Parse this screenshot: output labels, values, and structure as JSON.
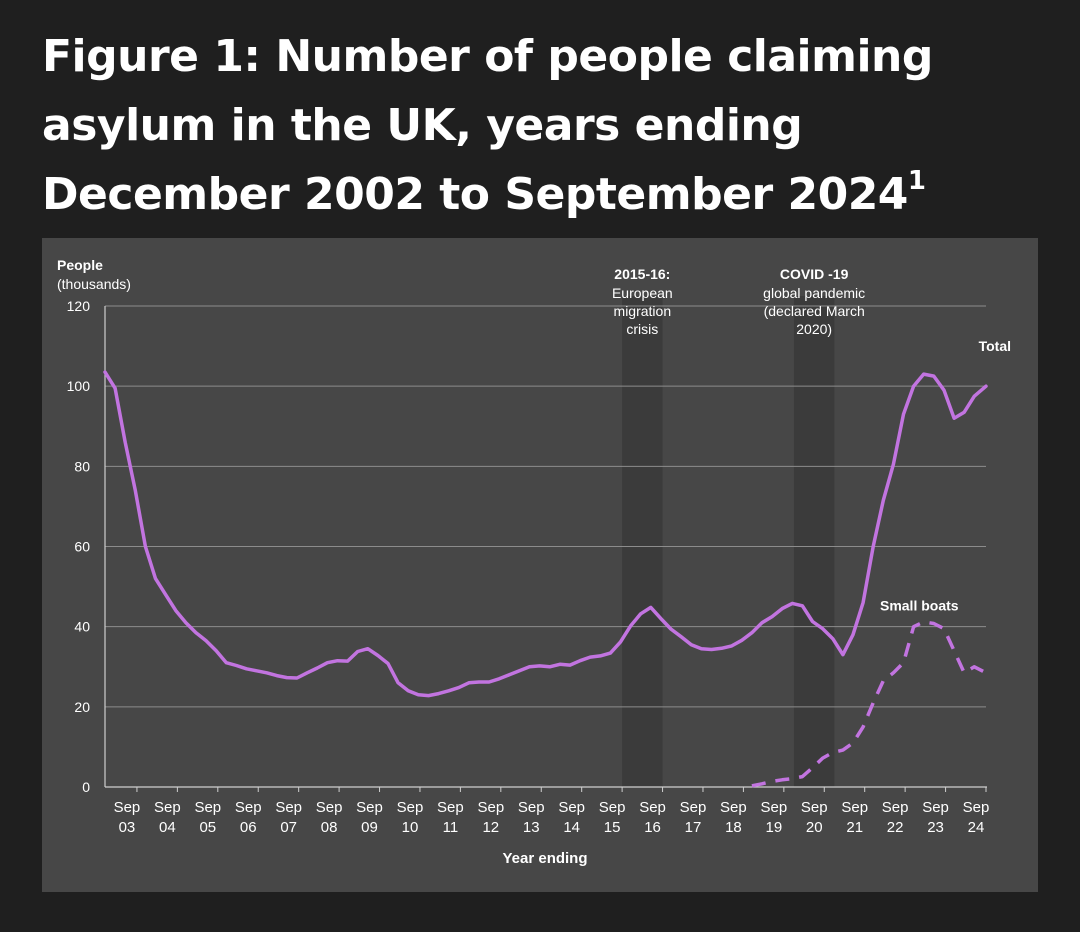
{
  "page": {
    "title": "Figure 1: Number of people claiming asylum in the UK, years ending December 2002 to September 2024",
    "title_footnote": "1"
  },
  "colors": {
    "background": "#1f1f1f",
    "panel": "#474747",
    "series": "#c274e0",
    "gridline": "#8c8c8c",
    "axis": "#cfcfcf",
    "text": "#ffffff",
    "shading": "#3a3a3a"
  },
  "chart_data": {
    "type": "line",
    "title": "Figure 1: Number of people claiming asylum in the UK, years ending December 2002 to September 2024",
    "ylabel": "People",
    "ylabel_unit": "(thousands)",
    "xlabel": "Year ending",
    "ylim": [
      0,
      120
    ],
    "yticks": [
      0,
      20,
      40,
      60,
      80,
      100,
      120
    ],
    "xlim": [
      2002.96,
      2024.75
    ],
    "xticks": [
      {
        "x": 2003.75,
        "top": "Sep",
        "bottom": "03"
      },
      {
        "x": 2004.75,
        "top": "Sep",
        "bottom": "04"
      },
      {
        "x": 2005.75,
        "top": "Sep",
        "bottom": "05"
      },
      {
        "x": 2006.75,
        "top": "Sep",
        "bottom": "06"
      },
      {
        "x": 2007.75,
        "top": "Sep",
        "bottom": "07"
      },
      {
        "x": 2008.75,
        "top": "Sep",
        "bottom": "08"
      },
      {
        "x": 2009.75,
        "top": "Sep",
        "bottom": "09"
      },
      {
        "x": 2010.75,
        "top": "Sep",
        "bottom": "10"
      },
      {
        "x": 2011.75,
        "top": "Sep",
        "bottom": "11"
      },
      {
        "x": 2012.75,
        "top": "Sep",
        "bottom": "12"
      },
      {
        "x": 2013.75,
        "top": "Sep",
        "bottom": "13"
      },
      {
        "x": 2014.75,
        "top": "Sep",
        "bottom": "14"
      },
      {
        "x": 2015.75,
        "top": "Sep",
        "bottom": "15"
      },
      {
        "x": 2016.75,
        "top": "Sep",
        "bottom": "16"
      },
      {
        "x": 2017.75,
        "top": "Sep",
        "bottom": "17"
      },
      {
        "x": 2018.75,
        "top": "Sep",
        "bottom": "18"
      },
      {
        "x": 2019.75,
        "top": "Sep",
        "bottom": "19"
      },
      {
        "x": 2020.75,
        "top": "Sep",
        "bottom": "20"
      },
      {
        "x": 2021.75,
        "top": "Sep",
        "bottom": "21"
      },
      {
        "x": 2022.75,
        "top": "Sep",
        "bottom": "22"
      },
      {
        "x": 2023.75,
        "top": "Sep",
        "bottom": "23"
      },
      {
        "x": 2024.75,
        "top": "Sep",
        "bottom": "24"
      }
    ],
    "grid": true,
    "shaded_periods": [
      {
        "from": 2015.75,
        "to": 2016.75,
        "label_bold": "2015-16:",
        "label_lines": [
          "European",
          "migration",
          "crisis"
        ]
      },
      {
        "from": 2020.0,
        "to": 2021.0,
        "label_bold": "COVID -19",
        "label_lines": [
          "global pandemic",
          "(declared March",
          "2020)"
        ]
      }
    ],
    "series": [
      {
        "name": "Total",
        "style": "solid",
        "x": [
          2002.96,
          2003.21,
          2003.46,
          2003.71,
          2003.96,
          2004.21,
          2004.46,
          2004.71,
          2004.96,
          2005.21,
          2005.46,
          2005.71,
          2005.96,
          2006.21,
          2006.46,
          2006.71,
          2006.96,
          2007.21,
          2007.46,
          2007.71,
          2007.96,
          2008.21,
          2008.46,
          2008.71,
          2008.96,
          2009.21,
          2009.46,
          2009.71,
          2009.96,
          2010.21,
          2010.46,
          2010.71,
          2010.96,
          2011.21,
          2011.46,
          2011.71,
          2011.96,
          2012.21,
          2012.46,
          2012.71,
          2012.96,
          2013.21,
          2013.46,
          2013.71,
          2013.96,
          2014.21,
          2014.46,
          2014.71,
          2014.96,
          2015.21,
          2015.46,
          2015.71,
          2015.96,
          2016.21,
          2016.46,
          2016.71,
          2016.96,
          2017.21,
          2017.46,
          2017.71,
          2017.96,
          2018.21,
          2018.46,
          2018.71,
          2018.96,
          2019.21,
          2019.46,
          2019.71,
          2019.96,
          2020.21,
          2020.46,
          2020.71,
          2020.96,
          2021.21,
          2021.46,
          2021.71,
          2021.96,
          2022.21,
          2022.46,
          2022.71,
          2022.96,
          2023.21,
          2023.46,
          2023.71,
          2023.96,
          2024.21,
          2024.46,
          2024.75
        ],
        "values": [
          103.5,
          99.5,
          86,
          74,
          60,
          52,
          48,
          44,
          41,
          38.5,
          36.5,
          34,
          31,
          30.3,
          29.5,
          29,
          28.5,
          27.8,
          27.3,
          27.2,
          28.5,
          29.7,
          31,
          31.5,
          31.4,
          33.8,
          34.5,
          32.8,
          30.8,
          26,
          24,
          23,
          22.8,
          23.3,
          24,
          24.8,
          26,
          26.2,
          26.2,
          27,
          28,
          29,
          30,
          30.2,
          30,
          30.6,
          30.4,
          31.5,
          32.4,
          32.7,
          33.4,
          36.2,
          40.2,
          43.2,
          44.8,
          42,
          39.4,
          37.5,
          35.5,
          34.5,
          34.3,
          34.6,
          35.2,
          36.6,
          38.5,
          41,
          42.5,
          44.5,
          45.8,
          45.2,
          41.3,
          39.5,
          37,
          33,
          38,
          46,
          60,
          71.5,
          80.5,
          93,
          100,
          103,
          102.5,
          99,
          92,
          93.5,
          97.5,
          100
        ]
      },
      {
        "name": "Small boats",
        "style": "dashed",
        "x": [
          2018.96,
          2019.21,
          2019.46,
          2019.71,
          2019.96,
          2020.21,
          2020.46,
          2020.71,
          2020.96,
          2021.21,
          2021.46,
          2021.71,
          2021.96,
          2022.21,
          2022.46,
          2022.71,
          2022.96,
          2023.21,
          2023.46,
          2023.71,
          2023.96,
          2024.21,
          2024.46,
          2024.75
        ],
        "values": [
          0.3,
          0.8,
          1.4,
          1.8,
          2.1,
          2.6,
          4.8,
          7.2,
          8.6,
          9.2,
          11,
          15,
          21,
          26.5,
          28.5,
          31,
          40,
          41.2,
          40.8,
          39.5,
          34,
          28.5,
          30,
          28.5
        ]
      }
    ]
  }
}
